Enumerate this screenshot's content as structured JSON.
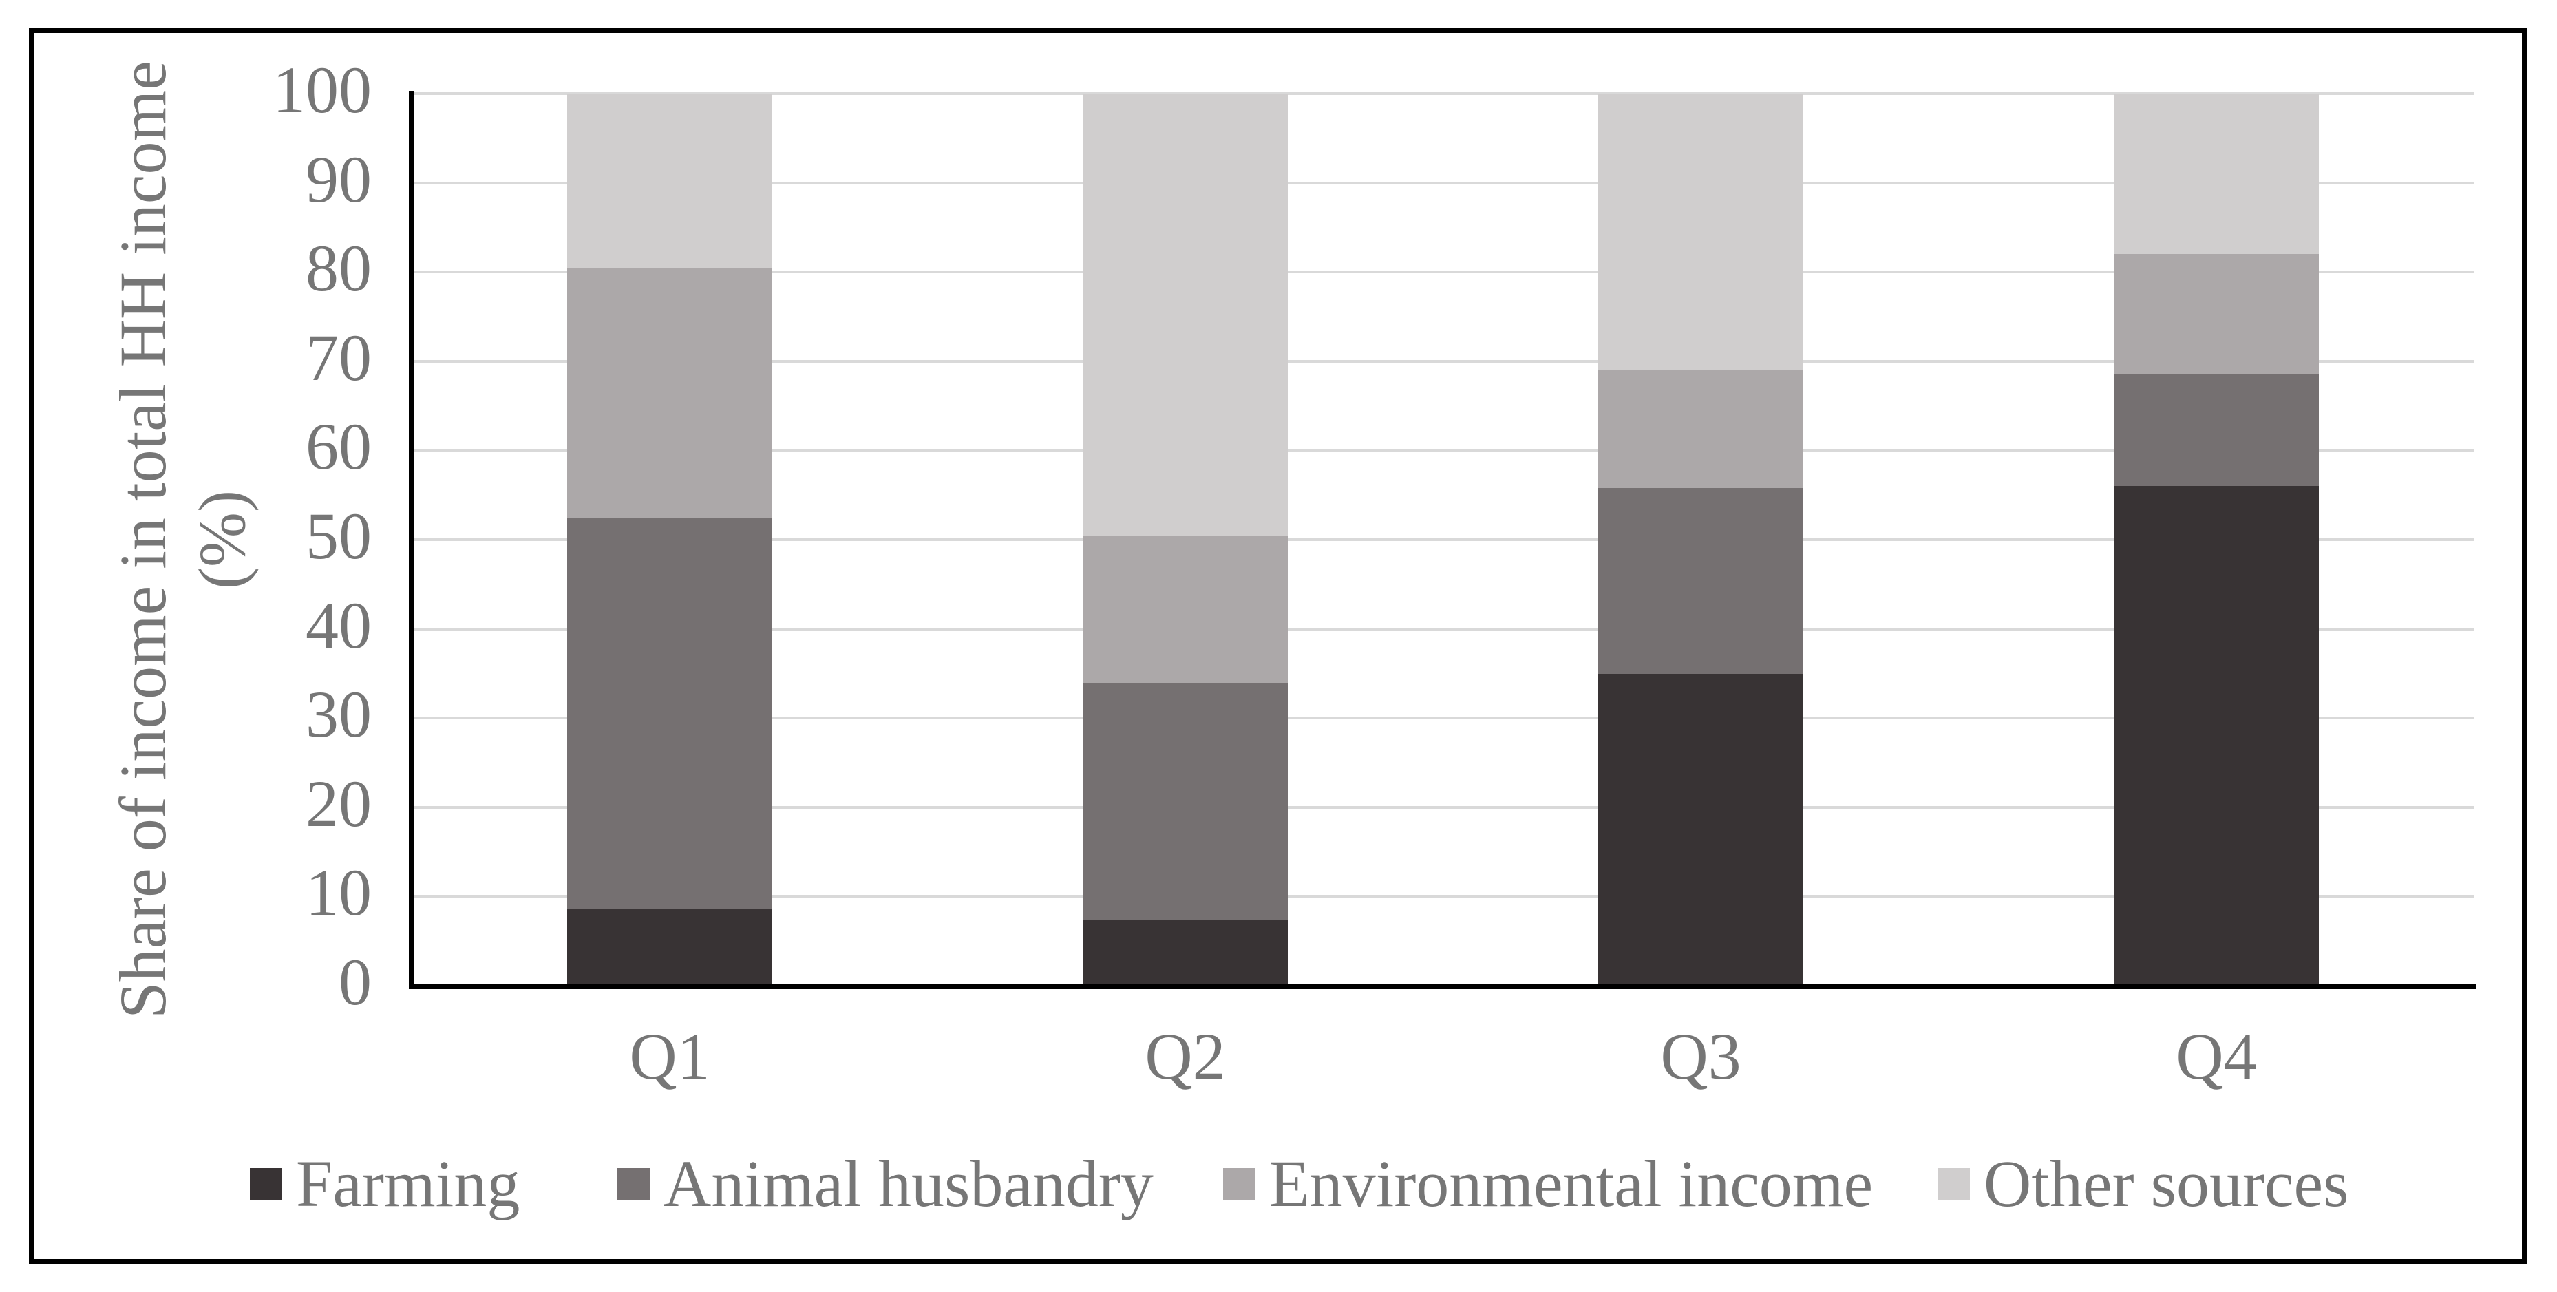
{
  "chart_data": {
    "type": "bar",
    "stacked": true,
    "orientation": "vertical",
    "categories": [
      "Q1",
      "Q2",
      "Q3",
      "Q4"
    ],
    "series": [
      {
        "name": "Farming",
        "color": "#383334",
        "values": [
          8.7,
          7.4,
          35.0,
          56.0
        ]
      },
      {
        "name": "Animal husbandry",
        "color": "#757071",
        "values": [
          43.8,
          26.6,
          20.8,
          12.6
        ]
      },
      {
        "name": "Environmental income",
        "color": "#ACA8A9",
        "values": [
          28.0,
          16.5,
          13.2,
          13.4
        ]
      },
      {
        "name": "Other sources",
        "color": "#D0CECE",
        "values": [
          19.5,
          49.5,
          31.0,
          18.0
        ]
      }
    ],
    "title": "",
    "xlabel": "",
    "ylabel": "Share of income in total HH income (%)",
    "ylabel_lines": [
      "Share of income in total HH income",
      "(%)"
    ],
    "ylim": [
      0,
      100
    ],
    "yticks": [
      0,
      10,
      20,
      30,
      40,
      50,
      60,
      70,
      80,
      90,
      100
    ],
    "grid": "horizontal-major",
    "legend_position": "bottom",
    "colors": {
      "gridline": "#D9D9D9",
      "axis_line": "#000000",
      "text": "#767676",
      "background": "#FFFFFF",
      "figure_border": "#000000"
    }
  }
}
